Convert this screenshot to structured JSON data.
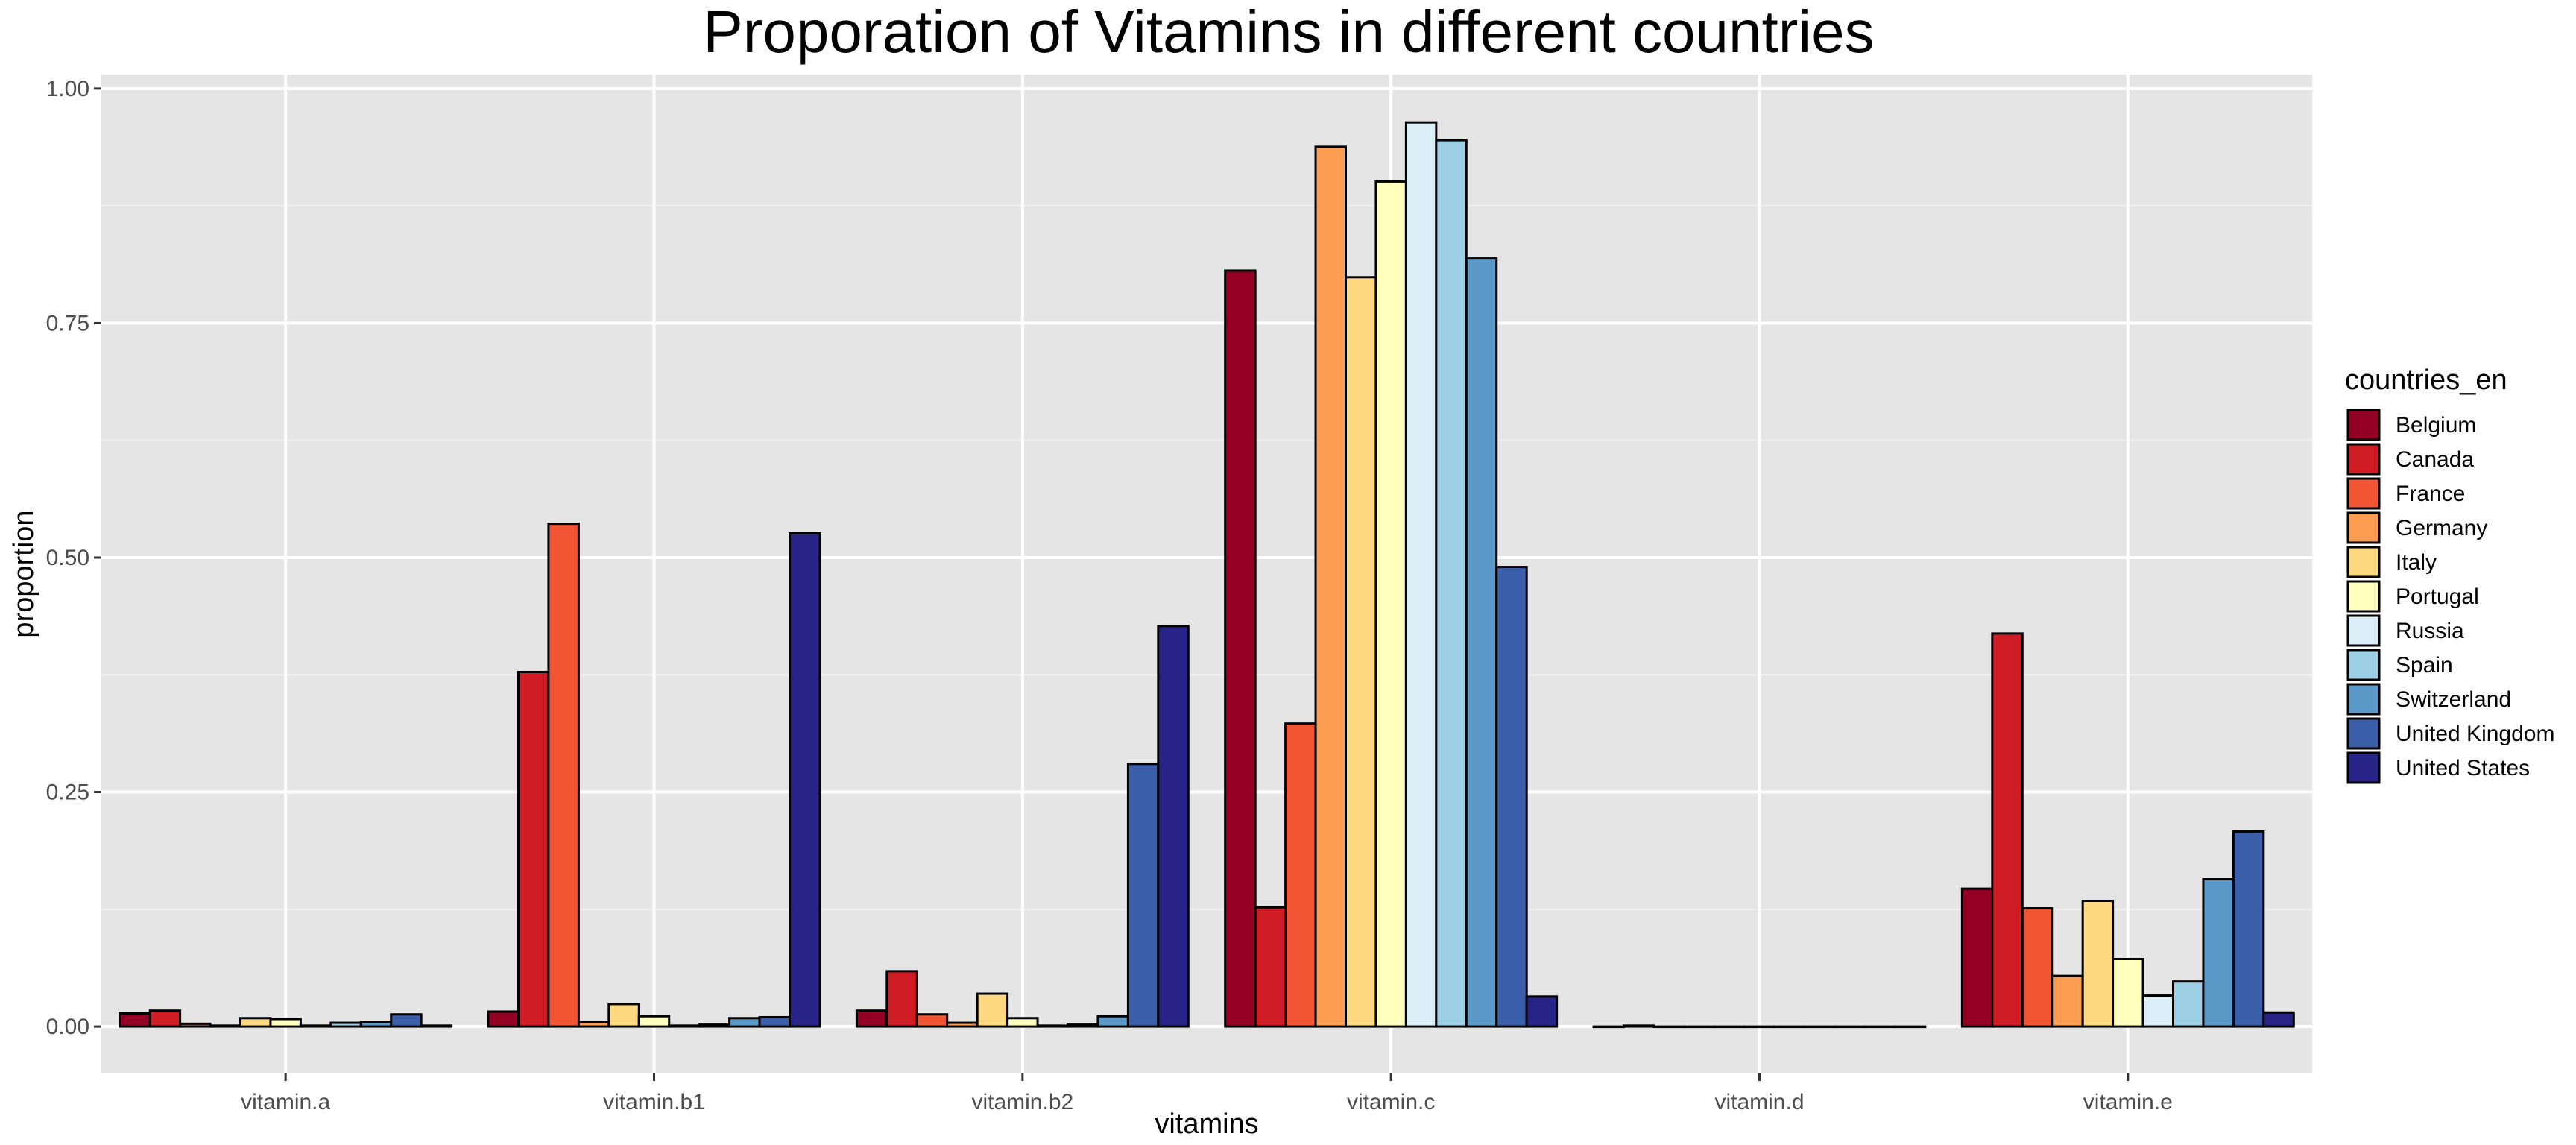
{
  "chart_data": {
    "type": "bar",
    "title": "Proporation of Vitamins in different countries",
    "xlabel": "vitamins",
    "ylabel": "proportion",
    "categories": [
      "vitamin.a",
      "vitamin.b1",
      "vitamin.b2",
      "vitamin.c",
      "vitamin.d",
      "vitamin.e"
    ],
    "ylim": [
      -0.05,
      1.015
    ],
    "yticks": [
      0.0,
      0.25,
      0.5,
      0.75,
      1.0
    ],
    "ytick_labels": [
      "0.00",
      "0.25",
      "0.50",
      "0.75",
      "1.00"
    ],
    "grid": true,
    "legend": {
      "title": "countries_en",
      "position": "right"
    },
    "series": [
      {
        "name": "Belgium",
        "color": "#940023",
        "values": [
          0.014,
          0.016,
          0.017,
          0.806,
          0.0,
          0.147
        ]
      },
      {
        "name": "Canada",
        "color": "#cf1c24",
        "values": [
          0.017,
          0.378,
          0.059,
          0.127,
          0.001,
          0.419
        ]
      },
      {
        "name": "France",
        "color": "#f15533",
        "values": [
          0.003,
          0.536,
          0.013,
          0.323,
          0.0,
          0.126
        ]
      },
      {
        "name": "Germany",
        "color": "#fd9d52",
        "values": [
          0.001,
          0.005,
          0.004,
          0.938,
          0.0,
          0.054
        ]
      },
      {
        "name": "Italy",
        "color": "#fed880",
        "values": [
          0.009,
          0.024,
          0.035,
          0.799,
          0.0,
          0.134
        ]
      },
      {
        "name": "Portugal",
        "color": "#ffffbe",
        "values": [
          0.008,
          0.011,
          0.009,
          0.901,
          0.0,
          0.072
        ]
      },
      {
        "name": "Russia",
        "color": "#dceef7",
        "values": [
          0.001,
          0.001,
          0.001,
          0.964,
          0.0,
          0.033
        ]
      },
      {
        "name": "Spain",
        "color": "#9dd0e4",
        "values": [
          0.004,
          0.002,
          0.002,
          0.945,
          0.0,
          0.048
        ]
      },
      {
        "name": "Switzerland",
        "color": "#5b99c8",
        "values": [
          0.005,
          0.009,
          0.011,
          0.819,
          0.0,
          0.157
        ]
      },
      {
        "name": "United Kingdom",
        "color": "#3a5fa8",
        "values": [
          0.013,
          0.01,
          0.28,
          0.49,
          0.0,
          0.208
        ]
      },
      {
        "name": "United States",
        "color": "#282386",
        "values": [
          0.001,
          0.526,
          0.427,
          0.032,
          0.0,
          0.015
        ]
      }
    ]
  }
}
